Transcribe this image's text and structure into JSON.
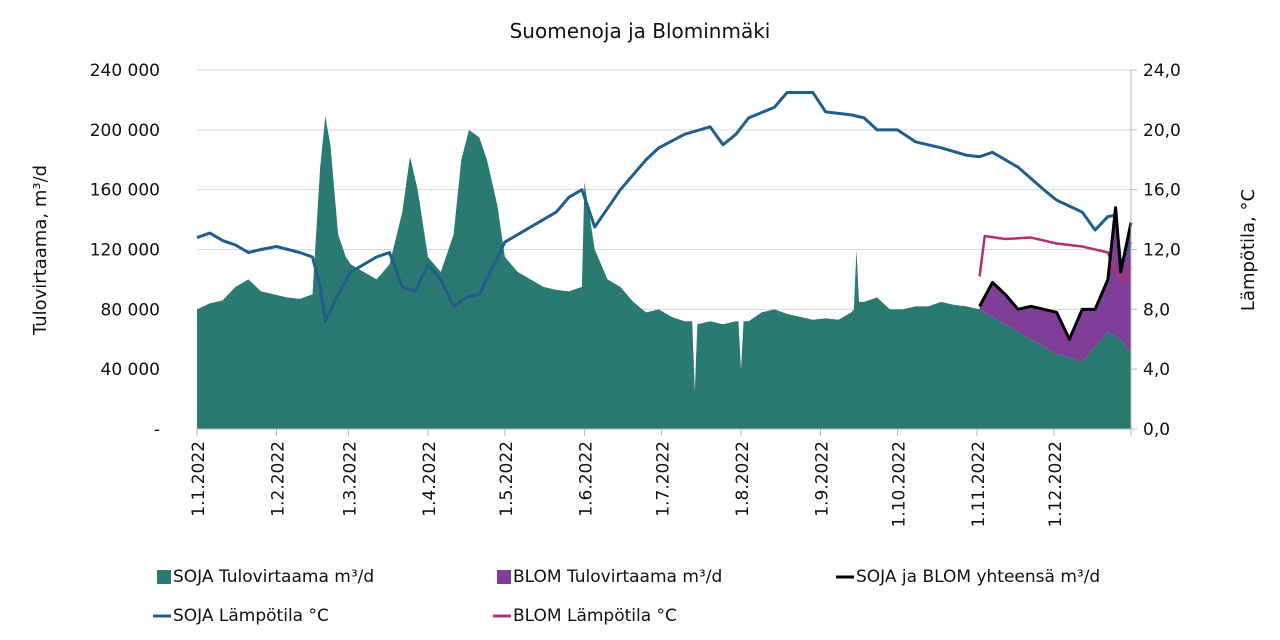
{
  "chart_data": {
    "type": "area",
    "title": "Suomenoja ja Blominmäki",
    "ylabel": "Tulovirtaama, m³/d",
    "y2label": "Lämpötila, °C",
    "ylim": [
      0,
      240000
    ],
    "y2lim": [
      0,
      24
    ],
    "grid": true,
    "legend_position": "bottom",
    "x_unit": "day of year 2022 (0 = 1.1.2022)",
    "xlim": [
      0,
      364
    ],
    "yticks": [
      0,
      40000,
      80000,
      120000,
      160000,
      200000,
      240000
    ],
    "ytick_labels": [
      "-",
      "40 000",
      "80 000",
      "120 000",
      "160 000",
      "200 000",
      "240 000"
    ],
    "y2tick_labels": [
      "0,0",
      "4,0",
      "8,0",
      "12,0",
      "16,0",
      "20,0",
      "24,0"
    ],
    "xticks": [
      0,
      31,
      59,
      90,
      120,
      151,
      181,
      212,
      243,
      273,
      304,
      334
    ],
    "xtick_labels": [
      "1.1.2022",
      "1.2.2022",
      "1.3.2022",
      "1.4.2022",
      "1.5.2022",
      "1.6.2022",
      "1.7.2022",
      "1.8.2022",
      "1.9.2022",
      "1.10.2022",
      "1.11.2022",
      "1.12.2022"
    ],
    "series": [
      {
        "name": "SOJA Tulovirtaama m³/d",
        "kind": "area",
        "axis": "left",
        "color": "#2a7a72",
        "x": [
          0,
          5,
          10,
          15,
          20,
          25,
          30,
          35,
          40,
          45,
          48,
          50,
          52,
          55,
          58,
          60,
          65,
          70,
          75,
          80,
          83,
          86,
          90,
          95,
          100,
          103,
          106,
          110,
          113,
          117,
          120,
          125,
          130,
          135,
          140,
          145,
          150,
          151,
          155,
          160,
          165,
          170,
          175,
          180,
          185,
          190,
          193,
          194,
          195,
          200,
          205,
          210,
          211,
          212,
          213,
          215,
          220,
          225,
          230,
          235,
          240,
          245,
          250,
          255,
          256,
          257,
          258,
          260,
          265,
          270,
          275,
          280,
          285,
          290,
          295,
          300,
          305,
          310,
          315,
          320,
          325,
          330,
          335,
          340,
          345,
          350,
          355,
          360,
          364
        ],
        "values": [
          80000,
          84000,
          86000,
          95000,
          100000,
          92000,
          90000,
          88000,
          87000,
          90000,
          175000,
          209000,
          190000,
          130000,
          115000,
          110000,
          105000,
          100000,
          110000,
          145000,
          182000,
          160000,
          115000,
          105000,
          130000,
          180000,
          200000,
          195000,
          180000,
          150000,
          115000,
          105000,
          100000,
          95000,
          93000,
          92000,
          95000,
          165000,
          120000,
          100000,
          95000,
          85000,
          78000,
          80000,
          75000,
          72000,
          72000,
          25000,
          70000,
          72000,
          70000,
          72000,
          72000,
          40000,
          72000,
          72000,
          78000,
          80000,
          77000,
          75000,
          73000,
          74000,
          73000,
          78000,
          80000,
          120000,
          85000,
          85000,
          88000,
          80000,
          80000,
          82000,
          82000,
          85000,
          83000,
          82000,
          80000,
          75000,
          70000,
          65000,
          60000,
          55000,
          50000,
          48000,
          45000,
          55000,
          65000,
          60000,
          50000
        ]
      },
      {
        "name": "BLOM Tulovirtaama m³/d",
        "kind": "stacked-area",
        "axis": "left",
        "color": "#7f3f98",
        "x": [
          305,
          310,
          315,
          320,
          325,
          330,
          335,
          340,
          345,
          350,
          355,
          358,
          360,
          364
        ],
        "values": [
          2000,
          23000,
          20000,
          15000,
          22000,
          25000,
          28000,
          12000,
          35000,
          25000,
          35000,
          85000,
          45000,
          88000
        ]
      },
      {
        "name": "SOJA ja BLOM yhteensä m³/d",
        "kind": "line",
        "axis": "left",
        "color": "#000000",
        "x": [
          305,
          310,
          315,
          320,
          325,
          330,
          335,
          340,
          345,
          350,
          355,
          358,
          360,
          364
        ],
        "values": [
          82000,
          98000,
          90000,
          80000,
          82000,
          80000,
          78000,
          60000,
          80000,
          80000,
          100000,
          148000,
          105000,
          138000
        ]
      },
      {
        "name": "SOJA Lämpötila °C",
        "kind": "line",
        "axis": "right",
        "color": "#1f5f8b",
        "x": [
          0,
          5,
          10,
          15,
          20,
          25,
          31,
          40,
          45,
          48,
          50,
          55,
          60,
          70,
          75,
          80,
          85,
          90,
          95,
          100,
          105,
          110,
          120,
          130,
          140,
          145,
          150,
          153,
          155,
          165,
          175,
          180,
          190,
          200,
          205,
          210,
          215,
          225,
          230,
          240,
          245,
          255,
          260,
          265,
          273,
          280,
          290,
          300,
          305,
          310,
          320,
          330,
          335,
          345,
          350,
          355,
          358,
          360,
          364
        ],
        "values": [
          12.8,
          13.1,
          12.6,
          12.3,
          11.8,
          12.0,
          12.2,
          11.8,
          11.5,
          9.5,
          7.2,
          9.0,
          10.5,
          11.5,
          11.8,
          9.5,
          9.2,
          11.0,
          10.0,
          8.2,
          8.8,
          9.0,
          12.5,
          13.5,
          14.5,
          15.5,
          16.0,
          14.5,
          13.5,
          16.0,
          18.0,
          18.8,
          19.7,
          20.2,
          19.0,
          19.7,
          20.8,
          21.5,
          22.5,
          22.5,
          21.2,
          21.0,
          20.8,
          20.0,
          20.0,
          19.2,
          18.8,
          18.3,
          18.2,
          18.5,
          17.5,
          16.0,
          15.3,
          14.5,
          13.3,
          14.2,
          14.3,
          11.0,
          12.5
        ]
      },
      {
        "name": "BLOM Lämpötila °C",
        "kind": "line",
        "axis": "right",
        "color": "#b5306e",
        "x": [
          305,
          307,
          315,
          325,
          335,
          345,
          355,
          358,
          361,
          364
        ],
        "values": [
          10.2,
          12.9,
          12.7,
          12.8,
          12.4,
          12.2,
          11.8,
          10.5,
          9.8,
          10.8
        ]
      }
    ]
  }
}
